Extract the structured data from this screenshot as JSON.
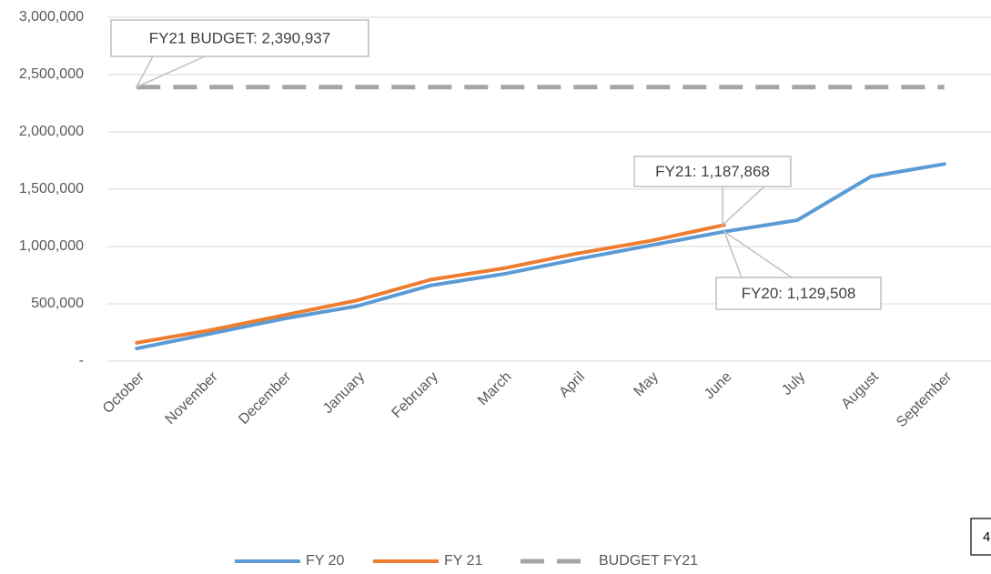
{
  "chart_data": {
    "type": "line",
    "categories": [
      "October",
      "November",
      "December",
      "January",
      "February",
      "March",
      "April",
      "May",
      "June",
      "July",
      "August",
      "September"
    ],
    "series": [
      {
        "name": "FY 20",
        "color": "#5b9bd5",
        "style": "solid",
        "values": [
          110000,
          240000,
          370000,
          480000,
          660000,
          760000,
          890000,
          1010000,
          1129508,
          1230000,
          1610000,
          1720000
        ]
      },
      {
        "name": "FY 21",
        "color": "#ed7d31",
        "style": "solid",
        "values": [
          160000,
          270000,
          400000,
          530000,
          710000,
          810000,
          940000,
          1050000,
          1187868,
          null,
          null,
          null
        ]
      },
      {
        "name": "BUDGET FY21",
        "color": "#a5a5a5",
        "style": "dashed",
        "values": [
          2390937,
          2390937,
          2390937,
          2390937,
          2390937,
          2390937,
          2390937,
          2390937,
          2390937,
          2390937,
          2390937,
          2390937
        ]
      }
    ],
    "ylim": [
      0,
      3000000
    ],
    "yticks": [
      {
        "value": 0,
        "label": "-"
      },
      {
        "value": 500000,
        "label": "500,000"
      },
      {
        "value": 1000000,
        "label": "1,000,000"
      },
      {
        "value": 1500000,
        "label": "1,500,000"
      },
      {
        "value": 2000000,
        "label": "2,000,000"
      },
      {
        "value": 2500000,
        "label": "2,500,000"
      },
      {
        "value": 3000000,
        "label": "3,000,000"
      }
    ],
    "grid": true,
    "legend": "bottom",
    "annotations": [
      "FY21 BUDGET: 2,390,937",
      "FY21: 1,187,868",
      "FY20: 1,129,508"
    ],
    "page_number": "4"
  }
}
